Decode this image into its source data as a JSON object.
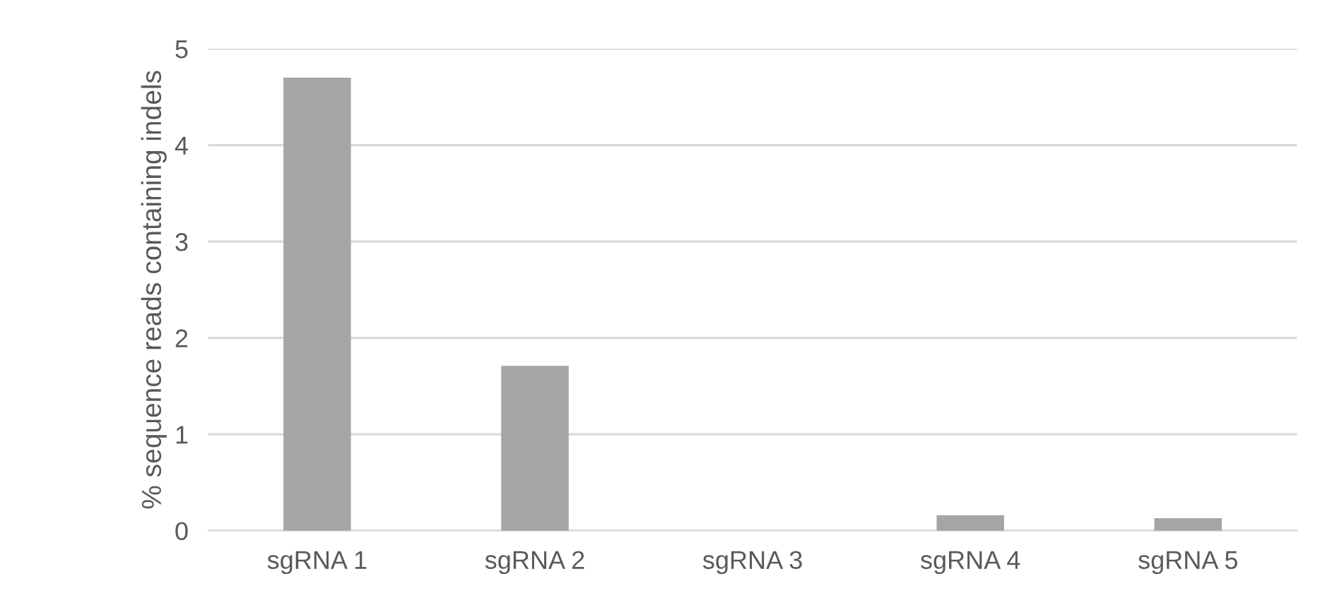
{
  "chart_data": {
    "type": "bar",
    "ylabel": "% sequence reads containing indels",
    "categories": [
      "sgRNA 1",
      "sgRNA 2",
      "sgRNA 3",
      "sgRNA 4",
      "sgRNA 5"
    ],
    "values": [
      4.7,
      1.71,
      0,
      0.16,
      0.13
    ],
    "color": "#a5a5a5",
    "ylim": [
      0,
      5
    ],
    "yticks": [
      0,
      1,
      2,
      3,
      4,
      5
    ],
    "grid": "y",
    "legend": false
  }
}
